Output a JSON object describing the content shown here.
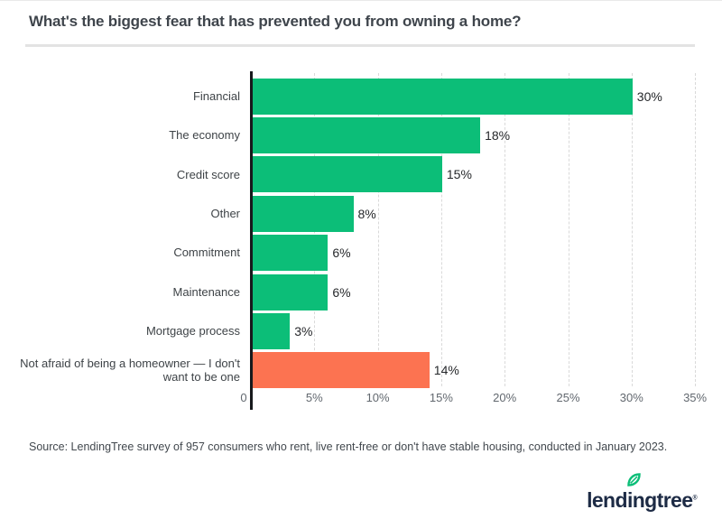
{
  "page": {
    "title": "What's the biggest fear that has prevented you from owning a home?",
    "source": "Source: LendingTree survey of 957 consumers who rent, live rent-free or don't have stable housing, conducted in January 2023.",
    "logo": {
      "brand": "lendingtree",
      "registered": "®",
      "brand_color": "#1d2b45",
      "leaf_color": "#0cbe78"
    }
  },
  "chart_data": {
    "type": "bar",
    "orientation": "horizontal",
    "title": "What's the biggest fear that has prevented you from owning a home?",
    "categories": [
      "Financial",
      "The economy",
      "Credit score",
      "Other",
      "Commitment",
      "Maintenance",
      "Mortgage process",
      "Not afraid of being a homeowner — I don't want to be one"
    ],
    "values": [
      30,
      18,
      15,
      8,
      6,
      6,
      3,
      14
    ],
    "value_labels": [
      "30%",
      "18%",
      "15%",
      "8%",
      "6%",
      "6%",
      "3%",
      "14%"
    ],
    "bar_colors": [
      "#0cbe78",
      "#0cbe78",
      "#0cbe78",
      "#0cbe78",
      "#0cbe78",
      "#0cbe78",
      "#0cbe78",
      "#fc7351"
    ],
    "highlight_index": 7,
    "x_ticks": {
      "values": [
        0,
        5,
        10,
        15,
        20,
        25,
        30,
        35
      ],
      "labels": [
        "0",
        "5%",
        "10%",
        "15%",
        "20%",
        "25%",
        "30%",
        "35%"
      ]
    },
    "xlim": [
      0,
      35
    ],
    "xlabel": "",
    "ylabel": "",
    "grid": "vertical-dashed",
    "grid_color": "#d9d9d9",
    "axis_color": "#17191c",
    "legend": "none"
  }
}
